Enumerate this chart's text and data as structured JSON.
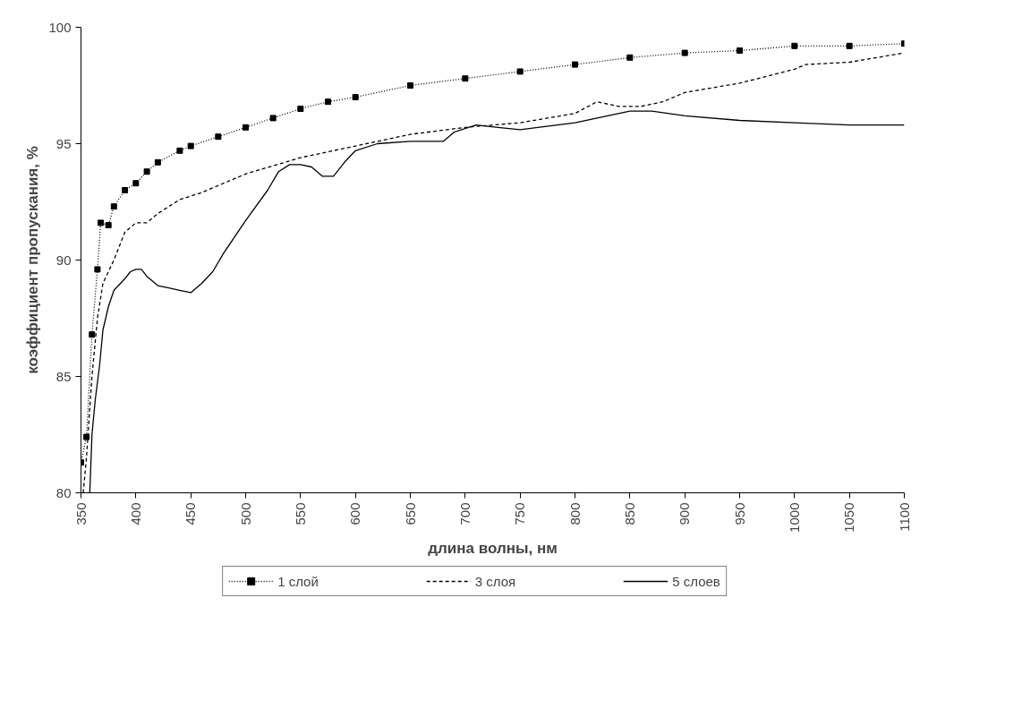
{
  "chart_data": {
    "type": "line",
    "xlabel": "длина волны, нм",
    "ylabel": "коэффициент пропускания, %",
    "xlim": [
      350,
      1100
    ],
    "ylim": [
      80,
      100
    ],
    "xticks": [
      350,
      400,
      450,
      500,
      550,
      600,
      650,
      700,
      750,
      800,
      850,
      900,
      950,
      1000,
      1050,
      1100
    ],
    "yticks": [
      80,
      85,
      90,
      95,
      100
    ],
    "grid": false,
    "legend": "bottom",
    "series": [
      {
        "name": "1 слой",
        "color": "#000000",
        "line_style": "dotted",
        "marker": "square",
        "x": [
          350,
          355,
          360,
          365,
          368,
          375,
          380,
          390,
          400,
          410,
          420,
          440,
          450,
          475,
          500,
          525,
          550,
          575,
          600,
          650,
          700,
          750,
          800,
          850,
          900,
          950,
          1000,
          1050,
          1100
        ],
        "values": [
          81.3,
          82.4,
          86.8,
          89.6,
          91.6,
          91.5,
          92.3,
          93.0,
          93.3,
          93.8,
          94.2,
          94.7,
          94.9,
          95.3,
          95.7,
          96.1,
          96.5,
          96.8,
          97.0,
          97.5,
          97.8,
          98.1,
          98.4,
          98.7,
          98.9,
          99.0,
          99.2,
          99.2,
          99.3
        ]
      },
      {
        "name": "3 слоя",
        "color": "#000000",
        "line_style": "dashed",
        "marker": "none",
        "x": [
          352,
          355,
          360,
          365,
          370,
          380,
          390,
          400,
          410,
          420,
          440,
          460,
          480,
          500,
          550,
          600,
          650,
          700,
          750,
          800,
          820,
          840,
          860,
          880,
          900,
          950,
          1000,
          1010,
          1050,
          1100
        ],
        "values": [
          80,
          81.5,
          85,
          87.5,
          89,
          90,
          91.2,
          91.6,
          91.6,
          92.0,
          92.6,
          92.9,
          93.3,
          93.7,
          94.4,
          94.9,
          95.4,
          95.7,
          95.9,
          96.3,
          96.8,
          96.6,
          96.6,
          96.8,
          97.2,
          97.6,
          98.2,
          98.4,
          98.5,
          98.9
        ]
      },
      {
        "name": "5 слоев",
        "color": "#000000",
        "line_style": "solid",
        "marker": "none",
        "x": [
          358,
          360,
          363,
          367,
          370,
          375,
          380,
          390,
          395,
          400,
          405,
          410,
          420,
          430,
          440,
          450,
          460,
          470,
          480,
          500,
          520,
          530,
          540,
          550,
          560,
          570,
          580,
          590,
          600,
          620,
          650,
          680,
          690,
          710,
          730,
          750,
          800,
          850,
          870,
          900,
          950,
          1000,
          1050,
          1100
        ],
        "values": [
          80,
          82.5,
          84,
          85.5,
          87,
          88,
          88.7,
          89.2,
          89.5,
          89.6,
          89.6,
          89.3,
          88.9,
          88.8,
          88.7,
          88.6,
          89,
          89.5,
          90.3,
          91.7,
          93,
          93.8,
          94.1,
          94.1,
          94.0,
          93.6,
          93.6,
          94.2,
          94.7,
          95.0,
          95.1,
          95.1,
          95.5,
          95.8,
          95.7,
          95.6,
          95.9,
          96.4,
          96.4,
          96.2,
          96.0,
          95.9,
          95.8,
          95.8
        ]
      }
    ]
  }
}
